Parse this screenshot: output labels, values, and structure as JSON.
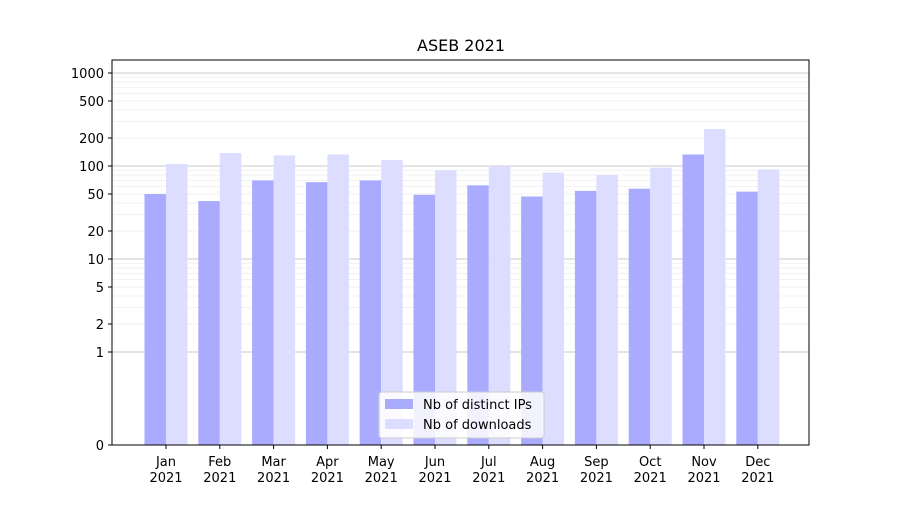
{
  "chart_data": {
    "type": "bar",
    "title": "ASEB 2021",
    "xlabel": "",
    "ylabel": "",
    "yscale": "symlog",
    "ylim": [
      0,
      1300
    ],
    "y_ticks": [
      {
        "value": 0,
        "label": "0"
      },
      {
        "value": 1,
        "label": "1"
      },
      {
        "value": 2,
        "label": "2"
      },
      {
        "value": 5,
        "label": "5"
      },
      {
        "value": 10,
        "label": "10"
      },
      {
        "value": 20,
        "label": "20"
      },
      {
        "value": 50,
        "label": "50"
      },
      {
        "value": 100,
        "label": "100"
      },
      {
        "value": 200,
        "label": "200"
      },
      {
        "value": 500,
        "label": "500"
      },
      {
        "value": 1000,
        "label": "1000"
      }
    ],
    "categories": [
      [
        "Jan",
        "2021"
      ],
      [
        "Feb",
        "2021"
      ],
      [
        "Mar",
        "2021"
      ],
      [
        "Apr",
        "2021"
      ],
      [
        "May",
        "2021"
      ],
      [
        "Jun",
        "2021"
      ],
      [
        "Jul",
        "2021"
      ],
      [
        "Aug",
        "2021"
      ],
      [
        "Sep",
        "2021"
      ],
      [
        "Oct",
        "2021"
      ],
      [
        "Nov",
        "2021"
      ],
      [
        "Dec",
        "2021"
      ]
    ],
    "series": [
      {
        "name": "Nb of distinct IPs",
        "color": "#aaaaff",
        "values": [
          50,
          42,
          70,
          67,
          70,
          49,
          62,
          47,
          54,
          57,
          133,
          53
        ]
      },
      {
        "name": "Nb of downloads",
        "color": "#ddddff",
        "values": [
          105,
          138,
          130,
          133,
          116,
          90,
          100,
          85,
          80,
          96,
          250,
          92
        ]
      }
    ],
    "grid": true,
    "legend_position": "lower center"
  }
}
